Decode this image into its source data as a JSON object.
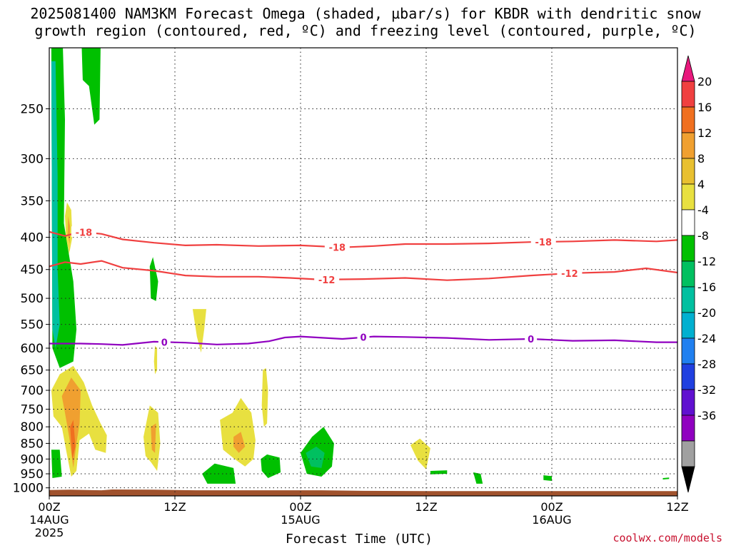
{
  "title_line1": "2025081400 NAM3KM Forecast Omega (shaded, µbar/s) for KBDR with dendritic snow",
  "title_line2": "growth region (contoured, red, ºC) and freezing level (contoured, purple, ºC)",
  "credit": "coolwx.com/models",
  "chart_data": {
    "type": "time-height",
    "title": "2025081400 NAM3KM Forecast Omega (shaded, µbar/s) for KBDR with dendritic snow growth region (contoured, red, ºC) and freezing level (contoured, purple, ºC)",
    "xlabel": "Forecast Time (UTC)",
    "ylabel": "",
    "x_ticks": [
      {
        "label": "00Z",
        "sub1": "14AUG",
        "sub2": "2025",
        "hour": 0
      },
      {
        "label": "12Z",
        "sub1": "",
        "sub2": "",
        "hour": 12
      },
      {
        "label": "00Z",
        "sub1": "15AUG",
        "sub2": "",
        "hour": 24
      },
      {
        "label": "12Z",
        "sub1": "",
        "sub2": "",
        "hour": 36
      },
      {
        "label": "00Z",
        "sub1": "16AUG",
        "sub2": "",
        "hour": 48
      },
      {
        "label": "12Z",
        "sub1": "",
        "sub2": "",
        "hour": 60
      }
    ],
    "xlim": [
      0,
      60
    ],
    "y_ticks": [
      250,
      300,
      350,
      400,
      450,
      500,
      550,
      600,
      650,
      700,
      750,
      800,
      850,
      900,
      950,
      1000
    ],
    "ylim": [
      200,
      1030
    ],
    "y_scale": "log",
    "grid": true,
    "colorbar": {
      "labels": [
        "20",
        "16",
        "12",
        "8",
        "4",
        "-4",
        "-8",
        "-12",
        "-16",
        "-20",
        "-24",
        "-28",
        "-32",
        "-36"
      ],
      "colors": [
        "#e8187c",
        "#f04040",
        "#f07020",
        "#f0a030",
        "#e8c030",
        "#e8e040",
        "#ffffff",
        "#00c000",
        "#00c060",
        "#00c0a0",
        "#00b0d0",
        "#2080f0",
        "#2040e0",
        "#6010d0",
        "#9000c0",
        "#a0a0a0",
        "#000000"
      ]
    },
    "contours": [
      {
        "name": "-18",
        "color": "#f04040",
        "label_hours": [
          3.3,
          27.5,
          47.2
        ],
        "points": [
          [
            0,
            392
          ],
          [
            1.5,
            398
          ],
          [
            3,
            392
          ],
          [
            5,
            395
          ],
          [
            7,
            403
          ],
          [
            10,
            408
          ],
          [
            13,
            412
          ],
          [
            16,
            411
          ],
          [
            20,
            413
          ],
          [
            24,
            412
          ],
          [
            28,
            415
          ],
          [
            31,
            413
          ],
          [
            34,
            410
          ],
          [
            38,
            410
          ],
          [
            42,
            409
          ],
          [
            46,
            407
          ],
          [
            50,
            406
          ],
          [
            54,
            404
          ],
          [
            58,
            406
          ],
          [
            60,
            404
          ]
        ]
      },
      {
        "name": "-12",
        "color": "#f04040",
        "label_hours": [
          26.5,
          49.7
        ],
        "points": [
          [
            0,
            445
          ],
          [
            1.5,
            438
          ],
          [
            3,
            441
          ],
          [
            5,
            436
          ],
          [
            7,
            447
          ],
          [
            10,
            452
          ],
          [
            13,
            460
          ],
          [
            16,
            462
          ],
          [
            20,
            462
          ],
          [
            23,
            464
          ],
          [
            26,
            467
          ],
          [
            30,
            466
          ],
          [
            34,
            464
          ],
          [
            38,
            468
          ],
          [
            42,
            465
          ],
          [
            46,
            460
          ],
          [
            50,
            456
          ],
          [
            54,
            454
          ],
          [
            57,
            448
          ],
          [
            60,
            455
          ]
        ]
      },
      {
        "name": "0",
        "color": "#9000c0",
        "label_hours": [
          11,
          30,
          46
        ],
        "points": [
          [
            0,
            590
          ],
          [
            3,
            590
          ],
          [
            5,
            591
          ],
          [
            7,
            593
          ],
          [
            10,
            586
          ],
          [
            13,
            588
          ],
          [
            16,
            592
          ],
          [
            19,
            590
          ],
          [
            21,
            585
          ],
          [
            22.5,
            577
          ],
          [
            24,
            575
          ],
          [
            28,
            580
          ],
          [
            31,
            575
          ],
          [
            34,
            576
          ],
          [
            38,
            578
          ],
          [
            42,
            582
          ],
          [
            46,
            580
          ],
          [
            50,
            584
          ],
          [
            54,
            583
          ],
          [
            58,
            587
          ],
          [
            60,
            587
          ]
        ]
      }
    ],
    "omega_regions": [
      {
        "value": -6,
        "pts": [
          [
            0.2,
            200
          ],
          [
            1.3,
            200
          ],
          [
            1.5,
            260
          ],
          [
            1.4,
            380
          ],
          [
            2.3,
            470
          ],
          [
            2.6,
            560
          ],
          [
            2.3,
            630
          ],
          [
            1.0,
            645
          ],
          [
            0.3,
            600
          ]
        ]
      },
      {
        "value": -12,
        "pts": [
          [
            0.2,
            210
          ],
          [
            0.6,
            210
          ],
          [
            0.8,
            320
          ],
          [
            0.8,
            450
          ],
          [
            1.0,
            550
          ],
          [
            0.6,
            600
          ],
          [
            0.3,
            560
          ]
        ]
      },
      {
        "value": -6,
        "pts": [
          [
            3.4,
            200
          ],
          [
            4.9,
            200
          ],
          [
            4.8,
            260
          ],
          [
            4.3,
            265
          ],
          [
            3.8,
            230
          ],
          [
            3.2,
            225
          ],
          [
            3.1,
            200
          ]
        ]
      },
      {
        "value": -6,
        "pts": [
          [
            9.6,
            445
          ],
          [
            9.9,
            430
          ],
          [
            10.4,
            470
          ],
          [
            10.2,
            505
          ],
          [
            9.7,
            500
          ]
        ]
      },
      {
        "value": 6,
        "pts": [
          [
            1.7,
            352
          ],
          [
            2.1,
            362
          ],
          [
            2.2,
            400
          ],
          [
            1.9,
            425
          ],
          [
            1.6,
            400
          ],
          [
            1.5,
            370
          ]
        ]
      },
      {
        "value": 10,
        "pts": [
          [
            1.8,
            370
          ],
          [
            2.0,
            385
          ],
          [
            1.95,
            410
          ],
          [
            1.75,
            395
          ]
        ]
      },
      {
        "value": 6,
        "pts": [
          [
            13.7,
            520
          ],
          [
            15.0,
            520
          ],
          [
            14.8,
            560
          ],
          [
            14.5,
            610
          ],
          [
            14.1,
            575
          ]
        ]
      },
      {
        "value": 6,
        "pts": [
          [
            10.1,
            595
          ],
          [
            10.3,
            600
          ],
          [
            10.3,
            650
          ],
          [
            10.1,
            660
          ],
          [
            10.0,
            630
          ]
        ]
      },
      {
        "value": 6,
        "pts": [
          [
            0.2,
            700
          ],
          [
            1.0,
            660
          ],
          [
            2.3,
            640
          ],
          [
            3.3,
            680
          ],
          [
            4.1,
            740
          ],
          [
            4.9,
            790
          ],
          [
            5.5,
            825
          ],
          [
            5.4,
            880
          ],
          [
            4.4,
            870
          ],
          [
            3.8,
            820
          ],
          [
            2.9,
            840
          ],
          [
            2.6,
            940
          ],
          [
            2.1,
            960
          ],
          [
            1.6,
            870
          ],
          [
            1.2,
            800
          ],
          [
            0.4,
            770
          ]
        ]
      },
      {
        "value": 10,
        "pts": [
          [
            1.2,
            715
          ],
          [
            2.1,
            668
          ],
          [
            3.0,
            700
          ],
          [
            2.9,
            790
          ],
          [
            2.6,
            850
          ],
          [
            2.3,
            930
          ],
          [
            1.9,
            830
          ],
          [
            1.5,
            760
          ]
        ]
      },
      {
        "value": 14,
        "pts": [
          [
            2.0,
            800
          ],
          [
            2.3,
            780
          ],
          [
            2.5,
            860
          ],
          [
            2.2,
            900
          ]
        ]
      },
      {
        "value": 6,
        "pts": [
          [
            9.0,
            830
          ],
          [
            9.6,
            740
          ],
          [
            10.4,
            760
          ],
          [
            10.6,
            850
          ],
          [
            10.3,
            940
          ],
          [
            9.7,
            910
          ],
          [
            9.2,
            890
          ]
        ]
      },
      {
        "value": 10,
        "pts": [
          [
            9.7,
            800
          ],
          [
            10.2,
            790
          ],
          [
            10.1,
            880
          ],
          [
            9.8,
            870
          ]
        ]
      },
      {
        "value": 6,
        "pts": [
          [
            16.3,
            780
          ],
          [
            17.5,
            760
          ],
          [
            18.3,
            720
          ],
          [
            19.3,
            760
          ],
          [
            19.7,
            840
          ],
          [
            19.5,
            900
          ],
          [
            18.7,
            925
          ],
          [
            17.7,
            900
          ],
          [
            16.6,
            870
          ]
        ]
      },
      {
        "value": 10,
        "pts": [
          [
            17.6,
            830
          ],
          [
            18.3,
            815
          ],
          [
            18.7,
            860
          ],
          [
            18.1,
            880
          ],
          [
            17.6,
            860
          ]
        ]
      },
      {
        "value": 6,
        "pts": [
          [
            20.4,
            650
          ],
          [
            20.7,
            645
          ],
          [
            20.9,
            700
          ],
          [
            20.8,
            790
          ],
          [
            20.5,
            800
          ],
          [
            20.3,
            740
          ]
        ]
      },
      {
        "value": 6,
        "pts": [
          [
            34.5,
            855
          ],
          [
            35.4,
            835
          ],
          [
            36.4,
            865
          ],
          [
            36.0,
            935
          ],
          [
            35.2,
            905
          ]
        ]
      },
      {
        "value": -6,
        "pts": [
          [
            0.2,
            870
          ],
          [
            1.0,
            870
          ],
          [
            1.2,
            960
          ],
          [
            0.3,
            965
          ]
        ]
      },
      {
        "value": -6,
        "pts": [
          [
            14.6,
            950
          ],
          [
            15.8,
            915
          ],
          [
            17.6,
            930
          ],
          [
            17.8,
            985
          ],
          [
            15.1,
            985
          ]
        ]
      },
      {
        "value": -6,
        "pts": [
          [
            20.2,
            900
          ],
          [
            20.8,
            885
          ],
          [
            22.0,
            895
          ],
          [
            22.1,
            945
          ],
          [
            20.9,
            965
          ],
          [
            20.3,
            940
          ]
        ]
      },
      {
        "value": -6,
        "pts": [
          [
            24.0,
            880
          ],
          [
            25.1,
            830
          ],
          [
            26.2,
            800
          ],
          [
            27.2,
            850
          ],
          [
            27.0,
            925
          ],
          [
            26.0,
            960
          ],
          [
            24.6,
            950
          ]
        ]
      },
      {
        "value": -10,
        "pts": [
          [
            24.5,
            880
          ],
          [
            25.5,
            860
          ],
          [
            26.3,
            880
          ],
          [
            26.0,
            930
          ],
          [
            25.0,
            925
          ]
        ]
      },
      {
        "value": -6,
        "pts": [
          [
            36.4,
            940
          ],
          [
            38.0,
            938
          ],
          [
            38.0,
            950
          ],
          [
            36.4,
            952
          ]
        ]
      },
      {
        "value": -6,
        "pts": [
          [
            40.5,
            945
          ],
          [
            41.2,
            950
          ],
          [
            41.4,
            985
          ],
          [
            40.8,
            985
          ]
        ]
      },
      {
        "value": -6,
        "pts": [
          [
            47.2,
            955
          ],
          [
            48.0,
            958
          ],
          [
            48.0,
            975
          ],
          [
            47.2,
            972
          ]
        ]
      },
      {
        "value": -6,
        "pts": [
          [
            58.6,
            965
          ],
          [
            59.2,
            963
          ],
          [
            59.2,
            968
          ],
          [
            58.6,
            970
          ]
        ]
      }
    ],
    "terrain_top": [
      [
        0,
        1008
      ],
      [
        2,
        1007
      ],
      [
        5,
        1009
      ],
      [
        6,
        1006
      ],
      [
        10,
        1007
      ],
      [
        14,
        1009
      ],
      [
        26,
        1009
      ],
      [
        30,
        1011
      ],
      [
        36,
        1012
      ],
      [
        45,
        1012
      ],
      [
        60,
        1012
      ]
    ]
  }
}
